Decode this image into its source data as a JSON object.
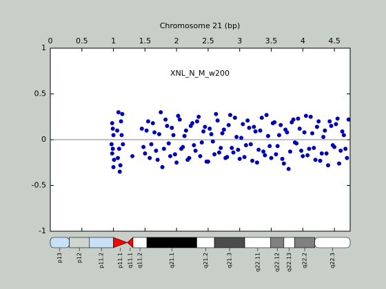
{
  "chart_data": {
    "type": "scatter",
    "title": "Chromosome 21 (bp)",
    "annotation": "XNL_N_M_w200",
    "xlim": [
      0,
      4.75
    ],
    "xticks": [
      0,
      0.5,
      1,
      1.5,
      2,
      2.5,
      3,
      3.5,
      4,
      4.5
    ],
    "ylim": [
      -1,
      1
    ],
    "yticks": [
      -1,
      -0.5,
      0,
      0.5,
      1
    ],
    "color": "#0000b4",
    "zero_line": true,
    "x": [
      0.98,
      0.99,
      1.0,
      0.97,
      1.01,
      0.99,
      1.0,
      0.98,
      1.08,
      1.1,
      1.12,
      1.07,
      1.13,
      1.09,
      1.14,
      1.11,
      1.06,
      1.15,
      1.3,
      1.45,
      1.5,
      1.55,
      1.6,
      1.65,
      1.7,
      1.75,
      1.8,
      1.85,
      1.9,
      1.95,
      2,
      2.05,
      2.1,
      2.15,
      2.2,
      2.25,
      2.3,
      2.35,
      2.4,
      2.45,
      2.5,
      2.55,
      2.6,
      2.65,
      2.7,
      2.75,
      2.8,
      2.85,
      2.9,
      2.95,
      3,
      3.05,
      3.1,
      3.15,
      3.2,
      3.25,
      3.3,
      3.35,
      3.4,
      3.45,
      3.5,
      3.55,
      3.6,
      3.65,
      3.7,
      3.75,
      3.8,
      3.85,
      3.9,
      3.95,
      4,
      4.05,
      4.1,
      4.15,
      4.2,
      4.25,
      4.3,
      4.35,
      4.4,
      4.45,
      4.5,
      4.55,
      4.6,
      4.65,
      4.7,
      1.475,
      1.525,
      1.575,
      1.625,
      1.675,
      1.725,
      1.775,
      1.825,
      1.875,
      1.925,
      1.975,
      2.025,
      2.075,
      2.125,
      2.175,
      2.225,
      2.275,
      2.325,
      2.375,
      2.425,
      2.475,
      2.525,
      2.575,
      2.625,
      2.675,
      2.725,
      2.775,
      2.825,
      2.875,
      2.925,
      2.975,
      3.025,
      3.075,
      3.125,
      3.175,
      3.225,
      3.275,
      3.325,
      3.375,
      3.425,
      3.475,
      3.525,
      3.575,
      3.625,
      3.675,
      3.725,
      3.775,
      3.825,
      3.875,
      3.925,
      3.975,
      4.025,
      4.075,
      4.125,
      4.175,
      4.225,
      4.275,
      4.325,
      4.375,
      4.425,
      4.475,
      4.525,
      4.575,
      4.625,
      4.675,
      4.725
    ],
    "y": [
      0.18,
      -0.1,
      0.05,
      -0.05,
      -0.22,
      0.12,
      -0.3,
      -0.15,
      0.3,
      -0.35,
      0.2,
      -0.2,
      0.05,
      -0.1,
      0.28,
      -0.28,
      0.1,
      -0.05,
      -0.18,
      0.12,
      -0.15,
      0.2,
      -0.05,
      0.08,
      -0.22,
      0.3,
      -0.1,
      0.15,
      -0.18,
      0.05,
      -0.25,
      0.22,
      -0.08,
      0.1,
      -0.2,
      0.18,
      -0.12,
      0.25,
      -0.03,
      0.14,
      -0.24,
      0.06,
      -0.16,
      0.21,
      -0.09,
      0.11,
      -0.19,
      0.27,
      -0.14,
      0.03,
      -0.21,
      0.17,
      -0.06,
      0.13,
      -0.23,
      0.09,
      -0.11,
      0.24,
      -0.17,
      0.04,
      -0.2,
      0.19,
      -0.07,
      0.16,
      -0.26,
      0.08,
      -0.13,
      0.22,
      -0.04,
      0.12,
      -0.18,
      0.26,
      -0.1,
      0.07,
      -0.22,
      0.2,
      -0.15,
      0.1,
      -0.28,
      0.15,
      -0.08,
      0.23,
      -0.12,
      0.05,
      -0.2,
      -0.08,
      0.1,
      -0.2,
      0.18,
      -0.12,
      0.06,
      -0.3,
      0.22,
      -0.04,
      0.13,
      -0.16,
      0.26,
      -0.1,
      0.04,
      -0.22,
      0.15,
      -0.06,
      0.2,
      -0.18,
      0.09,
      -0.24,
      0.12,
      -0.02,
      0.28,
      -0.14,
      0.07,
      -0.2,
      0.16,
      -0.09,
      0.24,
      -0.11,
      0.02,
      -0.19,
      0.21,
      -0.05,
      0.14,
      -0.25,
      0.1,
      -0.13,
      0.27,
      -0.07,
      0.18,
      -0.16,
      0.05,
      -0.21,
      0.11,
      -0.32,
      0.19,
      -0.03,
      0.23,
      -0.12,
      0.08,
      -0.17,
      0.25,
      -0.09,
      0.14,
      -0.23,
      0.03,
      -0.15,
      0.2,
      -0.06,
      0.17,
      -0.26,
      0.09,
      -0.1,
      0.22
    ],
    "ideogram": [
      {
        "band": "p13",
        "start": 0,
        "end": 0.3,
        "color": "#c8e0f8"
      },
      {
        "band": "p12",
        "start": 0.3,
        "end": 0.62,
        "color": "#d0d4d0"
      },
      {
        "band": "p11.2",
        "start": 0.62,
        "end": 1.0,
        "color": "#c8e0f8"
      },
      {
        "band": "p11.1",
        "start": 1.0,
        "end": 1.22,
        "color": "#ff0000"
      },
      {
        "band": "q11.1",
        "start": 1.22,
        "end": 1.31,
        "color": "#ff0000"
      },
      {
        "band": "q11.2",
        "start": 1.31,
        "end": 1.53,
        "color": "#ffffff"
      },
      {
        "band": "q21.1",
        "start": 1.53,
        "end": 2.32,
        "color": "#000000"
      },
      {
        "band": "q21.2",
        "start": 2.32,
        "end": 2.6,
        "color": "#ffffff"
      },
      {
        "band": "q21.3",
        "start": 2.6,
        "end": 3.08,
        "color": "#4c4c4c"
      },
      {
        "band": "q22.11",
        "start": 3.08,
        "end": 3.49,
        "color": "#ffffff"
      },
      {
        "band": "q22.12",
        "start": 3.49,
        "end": 3.7,
        "color": "#808080"
      },
      {
        "band": "q22.13",
        "start": 3.7,
        "end": 3.87,
        "color": "#ffffff"
      },
      {
        "band": "q22.2",
        "start": 3.87,
        "end": 4.19,
        "color": "#808080"
      },
      {
        "band": "q22.3",
        "start": 4.19,
        "end": 4.75,
        "color": "#ffffff"
      }
    ]
  }
}
